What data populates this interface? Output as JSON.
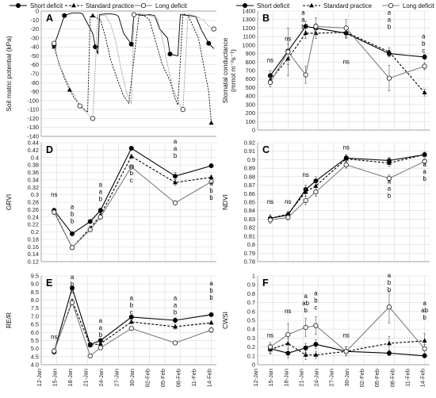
{
  "legend": {
    "series": [
      {
        "label": "Short deficit",
        "style": "solid",
        "marker": "filled-circle",
        "color": "#000000"
      },
      {
        "label": "Standard practice",
        "style": "dashed",
        "marker": "filled-triangle",
        "color": "#000000"
      },
      {
        "label": "Long deficit",
        "style": "solid-grey",
        "marker": "open-circle",
        "color": "#808080"
      }
    ]
  },
  "x_axis_dates": [
    "12-Jan",
    "15-Jan",
    "18-Jan",
    "21-Jan",
    "24-Jan",
    "27-Jan",
    "30-Jan",
    "02-Feb",
    "05-Feb",
    "08-Feb",
    "11-Feb",
    "14-Feb"
  ],
  "chart_data": [
    {
      "panel": "A",
      "type": "line",
      "ylabel": "Soil matric potential (kPa)",
      "ylim": [
        -140,
        0
      ],
      "yticks": [
        0,
        -10,
        -20,
        -30,
        -40,
        -50,
        -60,
        -70,
        -80,
        -90,
        -100,
        -110,
        -120,
        -130,
        -140
      ],
      "series": [
        {
          "name": "Short deficit",
          "x": [
            14.5,
            15.5,
            16.5,
            17.5,
            18.0,
            19.5,
            20.0,
            22.0,
            22.5,
            23.0,
            23.3,
            24.5,
            25.5,
            26.5,
            27.0,
            28.0,
            29.5,
            30.0,
            31.5,
            33.0,
            34.0,
            35.0,
            36.5,
            37.0,
            38.5,
            39.0,
            40.5,
            42.0,
            43.0,
            44.5,
            45.5
          ],
          "y": [
            -38,
            -22,
            -5,
            -3,
            -2,
            -2,
            -3,
            -25,
            -40,
            -48,
            -4,
            -3,
            -3,
            -4,
            -6,
            -25,
            -37,
            -3,
            -5,
            -4,
            -5,
            -20,
            -30,
            -48,
            -50,
            -4,
            -5,
            -6,
            -20,
            -36,
            -42
          ]
        },
        {
          "name": "Standard practice",
          "x": [
            14.5,
            15.5,
            16.5,
            17.5,
            18.5,
            20.0,
            21.0,
            21.5,
            22.0,
            23.5,
            24.5,
            25.5,
            27.0,
            28.0,
            29.0,
            31.0,
            32.0,
            33.0,
            34.5,
            35.5,
            37.0,
            38.0,
            38.5,
            39.5,
            40.5,
            42.5,
            44.5,
            45.0
          ],
          "y": [
            -40,
            -60,
            -75,
            -88,
            -98,
            -108,
            -113,
            -6,
            -5,
            -10,
            -30,
            -55,
            -80,
            -95,
            -103,
            -3,
            -5,
            -10,
            -40,
            -60,
            -78,
            -98,
            -105,
            -3,
            -5,
            -30,
            -90,
            -125
          ]
        },
        {
          "name": "Long deficit",
          "x": [
            14.5,
            15.5,
            16.5,
            17.5,
            18.5,
            19.5,
            20.5,
            21.5,
            22.0,
            23.0,
            24.5,
            25.5,
            26.5,
            27.5,
            28.5,
            29.5,
            30.0,
            31.5,
            33.0,
            34.5,
            35.5,
            36.5,
            37.5,
            38.5,
            39.5,
            40.5,
            42.0,
            43.5,
            44.5,
            45.5
          ],
          "y": [
            -36,
            -60,
            -72,
            -85,
            -95,
            -106,
            -112,
            -118,
            -120,
            -5,
            -5,
            -15,
            -35,
            -65,
            -90,
            -104,
            -4,
            -3,
            -5,
            -8,
            -30,
            -60,
            -85,
            -100,
            -110,
            -3,
            -6,
            -10,
            -17,
            -20
          ]
        }
      ]
    },
    {
      "panel": "B",
      "type": "line",
      "ylabel": "Stomatal conductance (mmol m⁻²s⁻¹)",
      "ylim": [
        0,
        1400
      ],
      "yticks": [
        0,
        100,
        200,
        300,
        400,
        500,
        600,
        700,
        800,
        900,
        1000,
        1100,
        1200,
        1300,
        1400
      ],
      "categories": [
        "15-Jan",
        "18-Jan",
        "21-Jan",
        "24-Jan",
        "30-Jan",
        "08-Feb",
        "14-Feb"
      ],
      "series": [
        {
          "name": "Short deficit",
          "x": [
            14.5,
            18.0,
            21.5,
            23.5,
            29.5,
            38.0,
            45.0
          ],
          "y": [
            640,
            930,
            1220,
            1200,
            1140,
            900,
            860
          ],
          "err": [
            60,
            80,
            60,
            50,
            60,
            40,
            30
          ]
        },
        {
          "name": "Standard practice",
          "x": [
            14.5,
            18.0,
            21.5,
            23.5,
            29.5,
            38.0,
            45.0
          ],
          "y": [
            590,
            840,
            1140,
            1140,
            1150,
            920,
            440
          ],
          "err": [
            50,
            70,
            60,
            60,
            60,
            50,
            40
          ]
        },
        {
          "name": "Long deficit",
          "x": [
            14.5,
            18.0,
            21.5,
            23.5,
            29.5,
            38.0,
            45.0
          ],
          "y": [
            560,
            920,
            650,
            1220,
            1200,
            610,
            750
          ],
          "err": [
            50,
            280,
            100,
            100,
            100,
            150,
            40
          ]
        }
      ],
      "annotations": [
        {
          "x": 14.5,
          "lines": [
            "ns"
          ],
          "y": 800
        },
        {
          "x": 18.0,
          "lines": [
            "ns"
          ],
          "y": 1050
        },
        {
          "x": 21.0,
          "lines": [
            "a",
            "a",
            "b"
          ],
          "y": 1360
        },
        {
          "x": 29.5,
          "lines": [
            "ns"
          ],
          "y": 780
        },
        {
          "x": 38.0,
          "lines": [
            "a",
            "a",
            "b"
          ],
          "y": 1360
        },
        {
          "x": 44.8,
          "lines": [
            "a",
            "b",
            "c"
          ],
          "y": 1080
        }
      ]
    },
    {
      "panel": "D",
      "type": "line",
      "ylabel": "GRVI",
      "ylim": [
        0.12,
        0.44
      ],
      "yticks": [
        0.12,
        0.14,
        0.16,
        0.18,
        0.2,
        0.22,
        0.24,
        0.26,
        0.28,
        0.3,
        0.32,
        0.34,
        0.36,
        0.38,
        0.4,
        0.42,
        0.44
      ],
      "categories": [
        "15-Jan",
        "18-Jan",
        "21-Jan",
        "24-Jan",
        "30-Jan",
        "08-Feb",
        "14-Feb"
      ],
      "series": [
        {
          "name": "Short deficit",
          "x": [
            14.5,
            18.0,
            21.5,
            23.5,
            29.5,
            38.0,
            45.0
          ],
          "y": [
            0.258,
            0.195,
            0.228,
            0.258,
            0.425,
            0.35,
            0.378
          ],
          "err": [
            0.006,
            0.004,
            0.005,
            0.006,
            0.005,
            0.01,
            0.005
          ]
        },
        {
          "name": "Standard practice",
          "x": [
            14.5,
            18.0,
            21.5,
            23.5,
            29.5,
            38.0,
            45.0
          ],
          "y": [
            0.255,
            0.158,
            0.21,
            0.245,
            0.403,
            0.333,
            0.347
          ],
          "err": [
            0.006,
            0.004,
            0.005,
            0.006,
            0.005,
            0.008,
            0.005
          ]
        },
        {
          "name": "Long deficit",
          "x": [
            14.5,
            18.0,
            21.5,
            23.5,
            29.5,
            38.0,
            45.0
          ],
          "y": [
            0.253,
            0.158,
            0.206,
            0.24,
            0.375,
            0.278,
            0.335
          ],
          "err": [
            0.006,
            0.004,
            0.005,
            0.006,
            0.005,
            0.005,
            0.005
          ]
        }
      ],
      "annotations": [
        {
          "x": 14.5,
          "lines": [
            "ns"
          ],
          "y": 0.295
        },
        {
          "x": 18.0,
          "lines": [
            "a",
            "b",
            "b"
          ],
          "y": 0.262
        },
        {
          "x": 23.5,
          "lines": [
            "a",
            "a",
            "b"
          ],
          "y": 0.322
        },
        {
          "x": 29.5,
          "lines": [
            "a",
            "b",
            "c"
          ],
          "y": 0.372
        },
        {
          "x": 38.0,
          "lines": [
            "a",
            "a",
            "b"
          ],
          "y": 0.438
        },
        {
          "x": 45.0,
          "lines": [
            "a",
            "b",
            "b"
          ],
          "y": 0.325
        }
      ]
    },
    {
      "panel": "C",
      "type": "line",
      "ylabel": "NDVI",
      "ylim": [
        0.78,
        0.92
      ],
      "yticks": [
        0.78,
        0.79,
        0.8,
        0.81,
        0.82,
        0.83,
        0.84,
        0.85,
        0.86,
        0.87,
        0.88,
        0.89,
        0.9,
        0.91,
        0.92
      ],
      "categories": [
        "15-Jan",
        "18-Jan",
        "21-Jan",
        "24-Jan",
        "30-Jan",
        "08-Feb",
        "14-Feb"
      ],
      "series": [
        {
          "name": "Short deficit",
          "x": [
            14.5,
            18.0,
            21.5,
            23.5,
            29.5,
            38.0,
            45.0
          ],
          "y": [
            0.831,
            0.835,
            0.865,
            0.875,
            0.902,
            0.899,
            0.906
          ],
          "err": [
            0.004,
            0.003,
            0.005,
            0.005,
            0.004,
            0.004,
            0.003
          ]
        },
        {
          "name": "Standard practice",
          "x": [
            14.5,
            18.0,
            21.5,
            23.5,
            29.5,
            38.0,
            45.0
          ],
          "y": [
            0.831,
            0.836,
            0.862,
            0.869,
            0.901,
            0.896,
            0.906
          ],
          "err": [
            0.004,
            0.003,
            0.005,
            0.005,
            0.004,
            0.004,
            0.003
          ]
        },
        {
          "name": "Long deficit",
          "x": [
            14.5,
            18.0,
            21.5,
            23.5,
            29.5,
            38.0,
            45.0
          ],
          "y": [
            0.829,
            0.832,
            0.852,
            0.862,
            0.894,
            0.878,
            0.898
          ],
          "err": [
            0.004,
            0.003,
            0.005,
            0.005,
            0.004,
            0.004,
            0.003
          ]
        }
      ],
      "annotations": [
        {
          "x": 14.5,
          "lines": [
            "ns"
          ],
          "y": 0.848
        },
        {
          "x": 18.0,
          "lines": [
            "ns"
          ],
          "y": 0.848
        },
        {
          "x": 21.5,
          "lines": [
            "ns"
          ],
          "y": 0.88
        },
        {
          "x": 29.5,
          "lines": [
            "ns"
          ],
          "y": 0.912
        },
        {
          "x": 38.0,
          "lines": [
            "a",
            "a",
            "b"
          ],
          "y": 0.872
        },
        {
          "x": 45.0,
          "lines": [
            "a",
            "a",
            "b"
          ],
          "y": 0.892
        }
      ]
    },
    {
      "panel": "E",
      "type": "line",
      "ylabel": "RE/R",
      "ylim": [
        4.0,
        9.5
      ],
      "yticks": [
        4.0,
        4.5,
        5.0,
        5.5,
        6.0,
        6.5,
        7.0,
        7.5,
        8.0,
        8.5,
        9.0,
        9.5
      ],
      "categories": [
        "15-Jan",
        "18-Jan",
        "21-Jan",
        "24-Jan",
        "30-Jan",
        "08-Feb",
        "14-Feb"
      ],
      "series": [
        {
          "name": "Short deficit",
          "x": [
            14.5,
            18.0,
            21.5,
            23.5,
            29.5,
            38.0,
            45.0
          ],
          "y": [
            4.8,
            8.75,
            5.25,
            5.5,
            6.95,
            6.75,
            7.1
          ],
          "err": [
            0.15,
            0.1,
            0.12,
            0.1,
            0.1,
            0.15,
            0.1
          ]
        },
        {
          "name": "Standard practice",
          "x": [
            14.5,
            18.0,
            21.5,
            23.5,
            29.5,
            38.0,
            45.0
          ],
          "y": [
            4.8,
            7.95,
            5.2,
            5.3,
            6.65,
            6.35,
            6.6
          ],
          "err": [
            0.15,
            0.1,
            0.12,
            0.1,
            0.1,
            0.15,
            0.1
          ]
        },
        {
          "name": "Long deficit",
          "x": [
            14.5,
            18.0,
            21.5,
            23.5,
            29.5,
            38.0,
            45.0
          ],
          "y": [
            4.85,
            7.85,
            4.55,
            5.05,
            6.25,
            5.35,
            6.15
          ],
          "err": [
            0.15,
            0.1,
            0.12,
            0.1,
            0.1,
            0.1,
            0.15
          ]
        }
      ],
      "annotations": [
        {
          "x": 14.5,
          "lines": [
            "ns"
          ],
          "y": 5.6
        },
        {
          "x": 18.0,
          "lines": [
            "a",
            "b",
            "b"
          ],
          "y": 9.3
        },
        {
          "x": 23.5,
          "lines": [
            "a",
            "a",
            "b"
          ],
          "y": 6.6
        },
        {
          "x": 29.5,
          "lines": [
            "a",
            "b",
            "c"
          ],
          "y": 8.0
        },
        {
          "x": 38.0,
          "lines": [
            "a",
            "a",
            "b"
          ],
          "y": 8.0
        },
        {
          "x": 45.0,
          "lines": [
            "a",
            "b",
            "b"
          ],
          "y": 8.9
        }
      ]
    },
    {
      "panel": "F",
      "type": "line",
      "ylabel": "CWSI",
      "ylim": [
        0,
        1
      ],
      "yticks": [
        0,
        0.1,
        0.2,
        0.3,
        0.4,
        0.5,
        0.6,
        0.7,
        0.8,
        0.9,
        1
      ],
      "categories": [
        "15-Jan",
        "18-Jan",
        "21-Jan",
        "24-Jan",
        "30-Jan",
        "08-Feb",
        "14-Feb"
      ],
      "series": [
        {
          "name": "Short deficit",
          "x": [
            14.5,
            18.0,
            21.5,
            23.5,
            29.5,
            38.0,
            45.0
          ],
          "y": [
            0.18,
            0.13,
            0.19,
            0.23,
            0.15,
            0.13,
            0.1
          ],
          "err": [
            0.05,
            0.05,
            0.05,
            0.05,
            0.05,
            0.03,
            0.02
          ]
        },
        {
          "name": "Standard practice",
          "x": [
            14.5,
            18.0,
            21.5,
            23.5,
            29.5,
            38.0,
            45.0
          ],
          "y": [
            0.17,
            0.24,
            0.11,
            0.11,
            0.15,
            0.24,
            0.27
          ],
          "err": [
            0.05,
            0.06,
            0.05,
            0.04,
            0.05,
            0.08,
            0.08
          ]
        },
        {
          "name": "Long deficit",
          "x": [
            14.5,
            18.0,
            21.5,
            23.5,
            29.5,
            38.0,
            45.0
          ],
          "y": [
            0.2,
            0.34,
            0.42,
            0.44,
            0.15,
            0.65,
            0.18
          ],
          "err": [
            0.05,
            0.12,
            0.1,
            0.1,
            0.05,
            0.18,
            0.05
          ]
        }
      ],
      "annotations": [
        {
          "x": 14.5,
          "lines": [
            "ns"
          ],
          "y": 0.31
        },
        {
          "x": 18.0,
          "lines": [
            "ns"
          ],
          "y": 0.58
        },
        {
          "x": 21.5,
          "lines": [
            "a",
            "ab",
            "b"
          ],
          "y": 0.75
        },
        {
          "x": 23.5,
          "lines": [
            "a",
            "b",
            "c"
          ],
          "y": 0.78
        },
        {
          "x": 29.5,
          "lines": [
            "ns"
          ],
          "y": 0.31
        },
        {
          "x": 38.0,
          "lines": [
            "a",
            "b",
            "b"
          ],
          "y": 0.98
        },
        {
          "x": 45.0,
          "lines": [
            "a",
            "ab",
            "b"
          ],
          "y": 0.67
        }
      ]
    }
  ]
}
